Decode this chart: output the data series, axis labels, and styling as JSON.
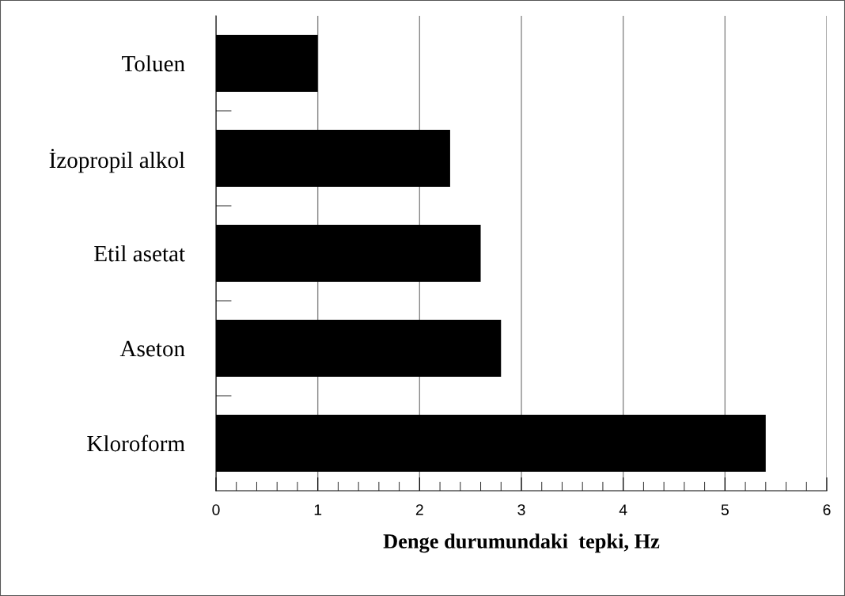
{
  "chart_data": {
    "type": "bar",
    "orientation": "horizontal",
    "xlabel": "Denge durumundaki  tepki, Hz",
    "categories": [
      "Toluen",
      "İzopropil alkol",
      "Etil asetat",
      "Aseton",
      "Kloroform"
    ],
    "values": [
      1.0,
      2.3,
      2.6,
      2.8,
      5.4
    ],
    "color": "#000000",
    "xlim": [
      0,
      6
    ],
    "xticks": [
      0,
      1,
      2,
      3,
      4,
      5,
      6
    ],
    "grid": "x"
  }
}
